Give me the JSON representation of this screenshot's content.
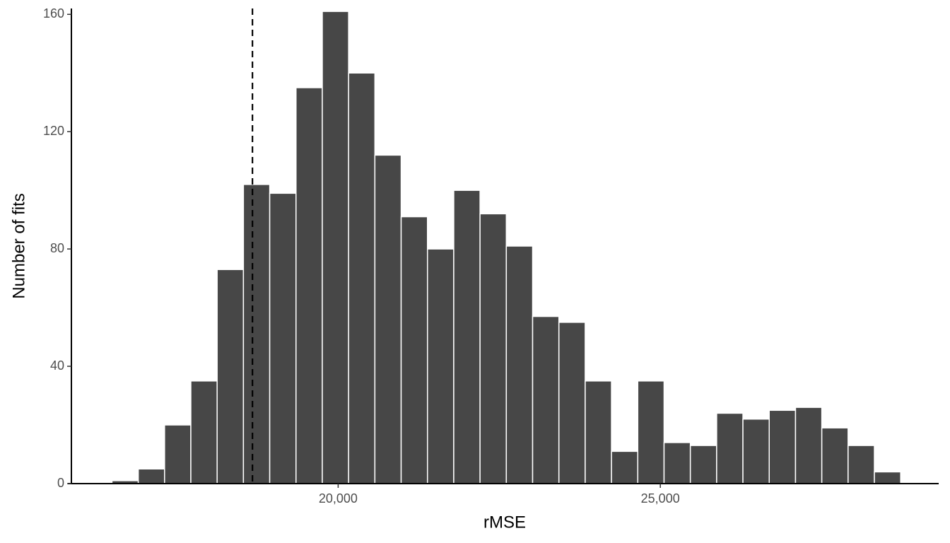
{
  "chart_data": {
    "type": "histogram",
    "x_label": "rMSE",
    "y_label": "Number of fits",
    "bins": [
      16490,
      16898,
      17306,
      17714,
      18122,
      18530,
      18938,
      19346,
      19754,
      20162,
      20570,
      20978,
      21386,
      21794,
      22202,
      22610,
      23018,
      23426,
      23834,
      24242,
      24650,
      25058,
      25466,
      25874,
      26282,
      26690,
      27098,
      27506,
      27914,
      28322,
      28730
    ],
    "values": [
      1,
      5,
      20,
      35,
      73,
      102,
      99,
      135,
      161,
      140,
      112,
      91,
      80,
      100,
      92,
      81,
      57,
      55,
      35,
      11,
      35,
      14,
      13,
      24,
      22,
      25,
      26,
      19,
      13,
      4
    ],
    "color": "#474747",
    "vline": 18670,
    "xlim": [
      15860,
      29320
    ],
    "xticks": [
      {
        "value": 20000,
        "label": "20,000"
      },
      {
        "value": 25000,
        "label": "25,000"
      }
    ],
    "ylim": [
      0,
      162
    ],
    "yticks": [
      0,
      40,
      80,
      120,
      160
    ],
    "grid": false
  }
}
